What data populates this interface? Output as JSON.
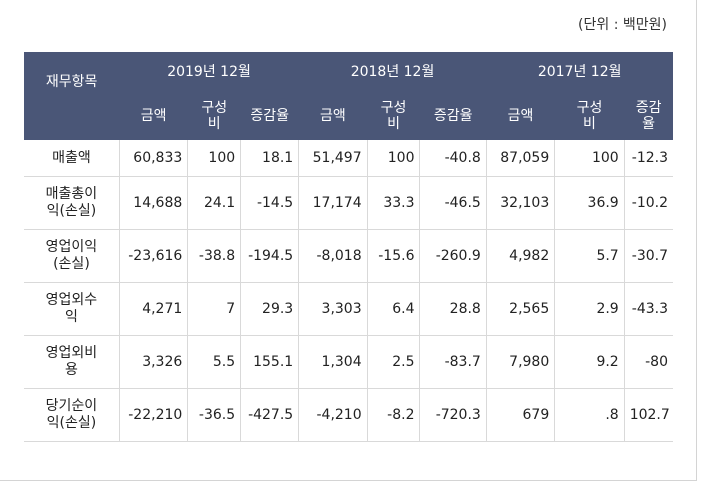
{
  "unit_label": "(단위 : 백만원)",
  "table": {
    "item_header": "재무항목",
    "periods": [
      "2019년 12월",
      "2018년 12월",
      "2017년 12월"
    ],
    "subheaders": [
      "금액",
      "구성\n비",
      "증감율",
      "금액",
      "구성\n비",
      "증감율",
      "금액",
      "구성\n비",
      "증감\n율"
    ],
    "rows": [
      {
        "label": "매출액",
        "cells": [
          "60,833",
          "100",
          "18.1",
          "51,497",
          "100",
          "-40.8",
          "87,059",
          "100",
          "-12.3"
        ]
      },
      {
        "label": "매출총이\n익(손실)",
        "cells": [
          "14,688",
          "24.1",
          "-14.5",
          "17,174",
          "33.3",
          "-46.5",
          "32,103",
          "36.9",
          "-10.2"
        ]
      },
      {
        "label": "영업이익\n(손실)",
        "cells": [
          "-23,616",
          "-38.8",
          "-194.5",
          "-8,018",
          "-15.6",
          "-260.9",
          "4,982",
          "5.7",
          "-30.7"
        ]
      },
      {
        "label": "영업외수\n익",
        "cells": [
          "4,271",
          "7",
          "29.3",
          "3,303",
          "6.4",
          "28.8",
          "2,565",
          "2.9",
          "-43.3"
        ]
      },
      {
        "label": "영업외비\n용",
        "cells": [
          "3,326",
          "5.5",
          "155.1",
          "1,304",
          "2.5",
          "-83.7",
          "7,980",
          "9.2",
          "-80"
        ]
      },
      {
        "label": "당기순이\n익(손실)",
        "cells": [
          "-22,210",
          "-36.5",
          "-427.5",
          "-4,210",
          "-8.2",
          "-720.3",
          "679",
          ".8",
          "102.7"
        ]
      }
    ]
  }
}
